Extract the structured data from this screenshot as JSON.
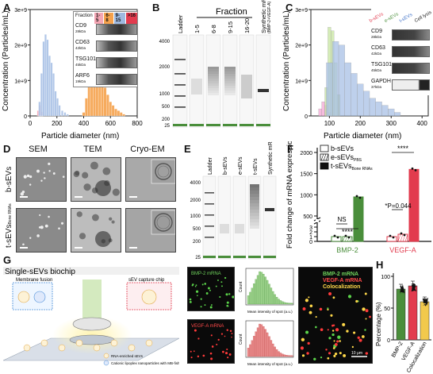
{
  "panels": {
    "a": "A",
    "b": "B",
    "c": "C",
    "d": "D",
    "e": "E",
    "f": "F",
    "g": "G",
    "h": "H"
  },
  "panel_a": {
    "ylabel": "Concentration (Particles/mL)",
    "xlabel": "Particle diameter (nm)",
    "yticks": [
      "0",
      "1e+9",
      "2e+9",
      "3e+9"
    ],
    "xticks": [
      "0",
      "200",
      "400",
      "600",
      "800"
    ],
    "inset": {
      "header": "Fraction",
      "fractions": [
        "1-5",
        "6-8",
        "9-15",
        ">16"
      ],
      "fraction_colors": [
        "#f4a6b4",
        "#f6a24d",
        "#9fb9e0",
        "#e23b4e"
      ],
      "proteins": [
        {
          "name": "CD9",
          "kda": "28kDa"
        },
        {
          "name": "CD63",
          "kda": "42kDa"
        },
        {
          "name": "TSG101",
          "kda": "45kDa"
        },
        {
          "name": "ARF6",
          "kda": "19kDa"
        }
      ]
    }
  },
  "panel_b": {
    "header": "Fraction",
    "lanes": [
      "Ladder",
      "1-5",
      "6-8",
      "9-15",
      "16-20",
      "Synthetic mRNAs"
    ],
    "lane_note": "(BMP-2+VEGF-A)",
    "ladder": [
      "4000",
      "2000",
      "1000",
      "500",
      "200",
      "25"
    ]
  },
  "panel_c": {
    "ylabel": "Concentration (Particles/mL)",
    "xlabel": "Particle diameter (nm)",
    "yticks": [
      "0",
      "1e+9",
      "2e+9",
      "3e+9"
    ],
    "xticks": [
      "100",
      "200",
      "300",
      "400"
    ],
    "legend": [
      {
        "label": "b-sEVs",
        "color": "#e23b4e"
      },
      {
        "label": "e-sEVs",
        "color": "#4a8e3b"
      },
      {
        "label": "t-sEVs",
        "color": "#3c6fc7"
      },
      {
        "label": "Cell lysis",
        "color": "#222222"
      }
    ],
    "proteins": [
      {
        "name": "CD9",
        "kda": "28kDa"
      },
      {
        "name": "CD63",
        "kda": "42kDa"
      },
      {
        "name": "TSG101",
        "kda": "45kDa"
      },
      {
        "name": "GAPDH",
        "kda": "37kDa"
      }
    ]
  },
  "panel_d": {
    "columns": [
      "SEM",
      "TEM",
      "Cryo-EM"
    ],
    "rows": [
      "b-sEVs",
      "t-sEVs"
    ],
    "row2_sub": "Bone RNAs"
  },
  "panel_e": {
    "lanes": [
      "Ladder",
      "b-sEVs",
      "e-sEVs",
      "t-sEVs",
      "Synthetic mRNAs"
    ],
    "lane_sub_e": "PBS",
    "lane_sub_t": "Bone RNAs",
    "lane_note": "(BMP-2+VEGF-A)",
    "ladder": [
      "4000",
      "2000",
      "1000",
      "500",
      "200",
      "25"
    ]
  },
  "panel_f": {
    "ylabel": "Fold change of mRNA expression in sEVs",
    "legend": [
      {
        "label": "b-sEVs",
        "pattern": "open"
      },
      {
        "label": "e-sEVs",
        "sub": "PBS",
        "pattern": "hatched"
      },
      {
        "label": "t-sEVs",
        "sub": "Bone RNAs",
        "pattern": "solid"
      }
    ],
    "yticks_low": [
      "0",
      "1",
      "2",
      "3"
    ],
    "yticks_high": [
      "500",
      "1000",
      "1500",
      "2000"
    ],
    "groups": [
      "BMP-2",
      "VEGF-A"
    ],
    "group_colors": [
      "#4a8e3b",
      "#e23b4e"
    ],
    "annotations": [
      "NS",
      "****",
      "*P=0.044",
      "****"
    ]
  },
  "panel_g": {
    "title": "Single-sEVs biochip",
    "labels": [
      "Membrane fusion",
      "sEV capture chip"
    ],
    "legend": [
      "RNA-enriched sEVs",
      "Cationic lipoplex nanoparticles with MB-fish probes"
    ],
    "img_labels": [
      "BMP-2 mRNA",
      "VEGF-A mRNA"
    ],
    "hist_xlabel": "Mean intensity of spot (a.u.)",
    "hist_ylabel": "Count",
    "merge": [
      "BMP-2 mRNA",
      "VEGF-A mRNA",
      "Colocalization"
    ],
    "scale": "10 μm"
  },
  "panel_h": {
    "ylabel": "Percentage (%)",
    "yticks": [
      "0",
      "50",
      "100"
    ],
    "categories": [
      "BMP-2",
      "VEGF-A",
      "Colocalization"
    ],
    "colors": [
      "#4a8e3b",
      "#e23b4e",
      "#f2c94c"
    ]
  },
  "chart_data": [
    {
      "type": "bar",
      "panel": "A",
      "xlabel": "Particle diameter (nm)",
      "ylabel": "Concentration (Particles/mL)",
      "xlim": [
        0,
        800
      ],
      "ylim": [
        0,
        3000000000
      ],
      "series": [
        {
          "name": "1-5",
          "x": [
            60,
            75,
            90
          ],
          "values": [
            150000000,
            300000000,
            120000000
          ]
        },
        {
          "name": "9-15",
          "x": [
            70,
            85,
            100,
            115,
            130,
            145,
            160,
            175,
            190,
            205,
            220,
            240,
            260,
            280
          ],
          "values": [
            400000000,
            1200000000,
            2100000000,
            2300000000,
            2150000000,
            1700000000,
            1500000000,
            1200000000,
            700000000,
            500000000,
            300000000,
            150000000,
            100000000,
            50000000
          ]
        },
        {
          "name": "6-8",
          "x": [
            400,
            420,
            440,
            460,
            480,
            500,
            520,
            540,
            560,
            580,
            600,
            620,
            640,
            660,
            680,
            700
          ],
          "values": [
            100000000,
            500000000,
            900000000,
            1500000000,
            1300000000,
            1250000000,
            1300000000,
            1000000000,
            800000000,
            600000000,
            400000000,
            300000000,
            200000000,
            150000000,
            100000000,
            50000000
          ]
        }
      ]
    },
    {
      "type": "bar",
      "panel": "C",
      "xlabel": "Particle diameter (nm)",
      "ylabel": "Concentration (Particles/mL)",
      "xlim": [
        40,
        420
      ],
      "ylim": [
        0,
        3000000000
      ],
      "series": [
        {
          "name": "b-sEVs",
          "x": [
            70,
            80,
            90,
            100
          ],
          "values": [
            200000000,
            400000000,
            300000000,
            100000000
          ]
        },
        {
          "name": "e-sEVs",
          "x": [
            90,
            100,
            110,
            120,
            130
          ],
          "values": [
            800000000,
            2500000000,
            2400000000,
            1500000000,
            600000000
          ]
        },
        {
          "name": "t-sEVs",
          "x": [
            100,
            120,
            140,
            160,
            180,
            200,
            220,
            240,
            260,
            280,
            300,
            320
          ],
          "values": [
            1500000000,
            2100000000,
            2000000000,
            1500000000,
            1200000000,
            900000000,
            700000000,
            500000000,
            400000000,
            300000000,
            200000000,
            100000000
          ]
        }
      ]
    },
    {
      "type": "bar",
      "panel": "F",
      "ylabel": "Fold change of mRNA expression in sEVs",
      "categories": [
        "BMP-2",
        "VEGF-A"
      ],
      "series": [
        {
          "name": "b-sEVs",
          "values": [
            1.0,
            1.0
          ]
        },
        {
          "name": "e-sEVs PBS",
          "values": [
            1.0,
            1.5
          ]
        },
        {
          "name": "t-sEVs Bone RNAs",
          "values": [
            950,
            1600
          ]
        }
      ]
    },
    {
      "type": "bar",
      "panel": "H",
      "ylabel": "Percentage (%)",
      "categories": [
        "BMP-2",
        "VEGF-A",
        "Colocalization"
      ],
      "values": [
        80,
        85,
        60
      ],
      "ylim": [
        0,
        100
      ]
    }
  ]
}
